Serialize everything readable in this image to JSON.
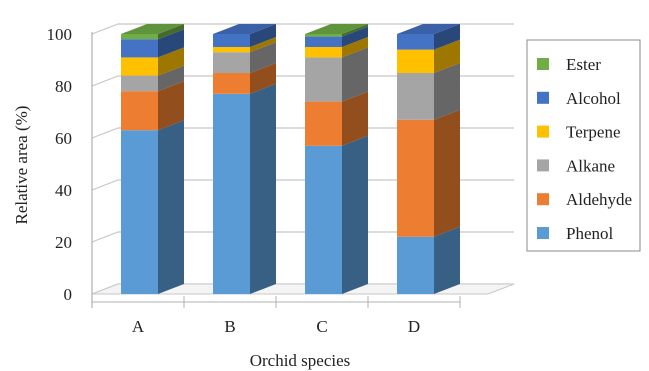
{
  "chart_data": {
    "type": "bar",
    "stacked": true,
    "three_d": true,
    "title": "",
    "xlabel": "Orchid species",
    "ylabel": "Relative area (%)",
    "ylim": [
      0,
      100
    ],
    "yticks": [
      0,
      20,
      40,
      60,
      80,
      100
    ],
    "grid": true,
    "legend_position": "right",
    "categories": [
      "A",
      "B",
      "C",
      "D"
    ],
    "series": [
      {
        "name": "Phenol",
        "color": "#5B9BD5",
        "values": [
          63,
          77,
          57,
          22
        ]
      },
      {
        "name": "Aldehyde",
        "color": "#ED7D31",
        "values": [
          15,
          8,
          17,
          45
        ]
      },
      {
        "name": "Alkane",
        "color": "#A5A5A5",
        "values": [
          6,
          8,
          17,
          18
        ]
      },
      {
        "name": "Terpene",
        "color": "#FFC000",
        "values": [
          7,
          2,
          4,
          9
        ]
      },
      {
        "name": "Alcohol",
        "color": "#4472C4",
        "values": [
          7,
          5,
          4,
          6
        ]
      },
      {
        "name": "Ester",
        "color": "#70AD47",
        "values": [
          2,
          0,
          1,
          0
        ]
      }
    ],
    "legend_order": [
      "Ester",
      "Alcohol",
      "Terpene",
      "Alkane",
      "Aldehyde",
      "Phenol"
    ]
  }
}
